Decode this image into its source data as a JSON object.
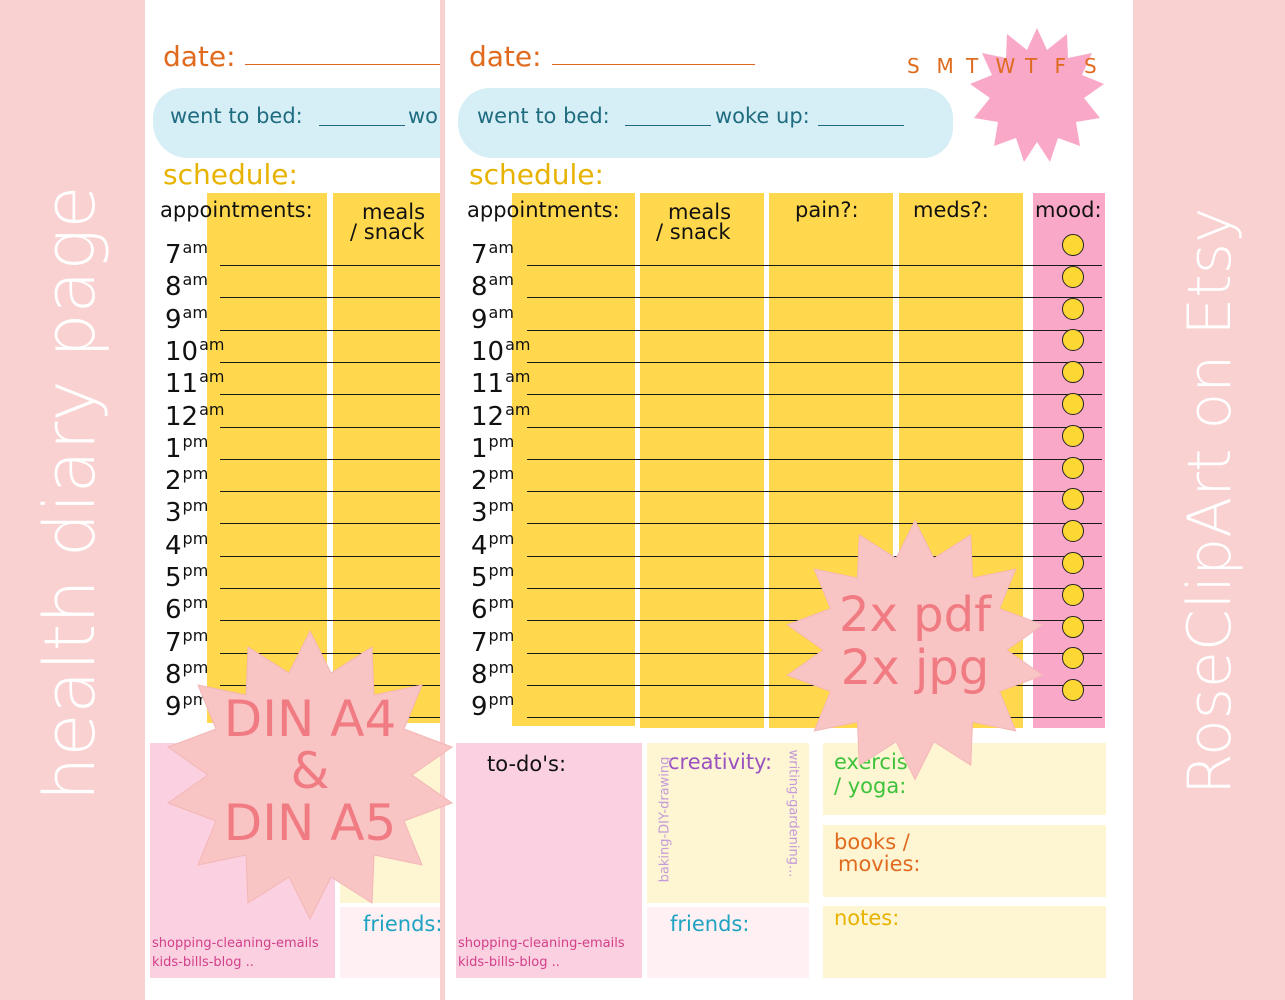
{
  "sidebar": {
    "left_text": "health diary page",
    "right_text": "RoseClipArt on Etsy"
  },
  "page": {
    "date_label": "date:",
    "went_to_bed_label": "went to bed:",
    "woke_up_label": "woke up:",
    "woke_up_partial": "wo",
    "schedule_label": "schedule:",
    "weekdays": [
      "S",
      "M",
      "T",
      "W",
      "T",
      "F",
      "S"
    ],
    "columns": {
      "appointments": "appointments:",
      "meals_line1": "meals",
      "meals_line2": "/ snack",
      "meals_line2_partial": "/ snack",
      "pain": "pain?:",
      "meds": "meds?:",
      "mood": "mood:"
    },
    "hours": [
      {
        "n": "7",
        "s": "am"
      },
      {
        "n": "8",
        "s": "am"
      },
      {
        "n": "9",
        "s": "am"
      },
      {
        "n": "10",
        "s": "am"
      },
      {
        "n": "11",
        "s": "am"
      },
      {
        "n": "12",
        "s": "am"
      },
      {
        "n": "1",
        "s": "pm"
      },
      {
        "n": "2",
        "s": "pm"
      },
      {
        "n": "3",
        "s": "pm"
      },
      {
        "n": "4",
        "s": "pm"
      },
      {
        "n": "5",
        "s": "pm"
      },
      {
        "n": "6",
        "s": "pm"
      },
      {
        "n": "7",
        "s": "pm"
      },
      {
        "n": "8",
        "s": "pm"
      },
      {
        "n": "9",
        "s": "pm"
      }
    ],
    "todo_label": "to-do's:",
    "todo_hint_1": "shopping-cleaning-emails",
    "todo_hint_2": "kids-bills-blog ..",
    "creativity_label": "creativity:",
    "creativity_left": "baking-DIY-drawing",
    "creativity_right": "writing-gardening...",
    "friends_label": "friends:",
    "exercise_line1": "exercise",
    "exercise_line2": "/ yoga:",
    "books_line1": "books /",
    "books_line2": "movies:",
    "notes_label": "notes:"
  },
  "badges": {
    "formats_line1": "DIN A4",
    "formats_line2": "&",
    "formats_line3": "DIN A5",
    "files_line1": "2x pdf",
    "files_line2": "2x jpg"
  },
  "colors": {
    "background": "#f9d1d1",
    "yellow": "#ffd84d",
    "pink": "#f9a8c8",
    "light_blue": "#d6eef5",
    "light_pink": "#fbd0e0",
    "cream": "#fef6d3",
    "orange": "#e06a1e",
    "teal": "#1f6c80",
    "gold": "#e8b300",
    "badge": "#f9c4c4",
    "badge_text": "#f07b82"
  }
}
